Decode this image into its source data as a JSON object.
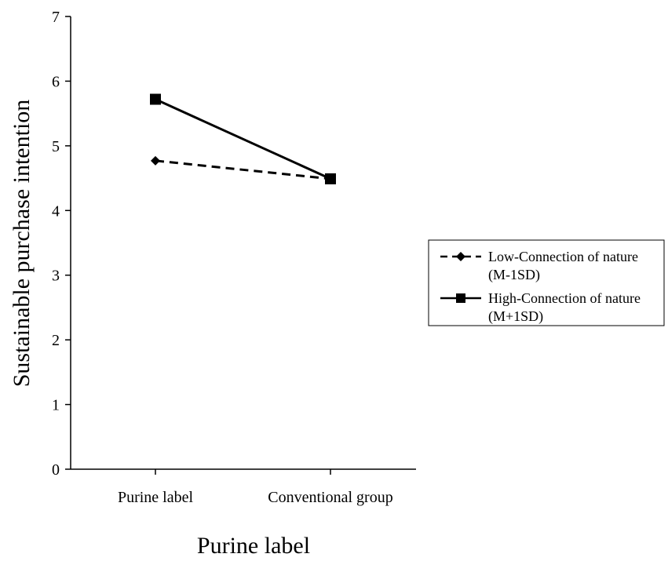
{
  "chart_data": {
    "type": "line",
    "xlabel": "Purine label",
    "ylabel": "Sustainable purchase intention",
    "categories": [
      "Purine label",
      "Conventional group"
    ],
    "ylim": [
      0,
      7
    ],
    "yticks": [
      "0",
      "1",
      "2",
      "3",
      "4",
      "5",
      "6",
      "7"
    ],
    "grid": false,
    "legend_position": "right",
    "series": [
      {
        "name_line1": "Low-Connection of nature",
        "name_line2": "(M-1SD)",
        "values": [
          4.77,
          4.49
        ],
        "marker": "diamond",
        "line_style": "dashed"
      },
      {
        "name_line1": "High-Connection of nature",
        "name_line2": "(M+1SD)",
        "values": [
          5.72,
          4.49
        ],
        "marker": "square",
        "line_style": "solid"
      }
    ]
  }
}
